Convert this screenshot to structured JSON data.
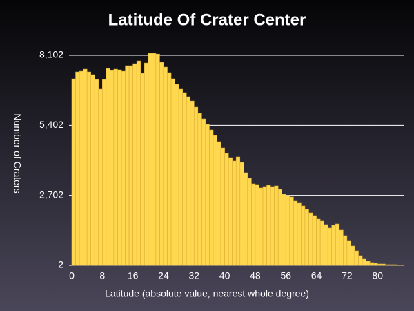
{
  "chart_data": {
    "type": "histogram",
    "title": "Latitude Of Crater Center",
    "xlabel": "Latitude (absolute value, nearest whole degree)",
    "ylabel": "Number of Craters",
    "bins": [
      0,
      1,
      2,
      3,
      4,
      5,
      6,
      7,
      8,
      9,
      10,
      11,
      12,
      13,
      14,
      15,
      16,
      17,
      18,
      19,
      20,
      21,
      22,
      23,
      24,
      25,
      26,
      27,
      28,
      29,
      30,
      31,
      32,
      33,
      34,
      35,
      36,
      37,
      38,
      39,
      40,
      41,
      42,
      43,
      44,
      45,
      46,
      47,
      48,
      49,
      50,
      51,
      52,
      53,
      54,
      55,
      56,
      57,
      58,
      59,
      60,
      61,
      62,
      63,
      64,
      65,
      66,
      67,
      68,
      69,
      70,
      71,
      72,
      73,
      74,
      75,
      76,
      77,
      78,
      79,
      80,
      81,
      82,
      83,
      84,
      85,
      86,
      87
    ],
    "values": [
      7193,
      7461,
      7487,
      7567,
      7461,
      7354,
      7168,
      6795,
      7168,
      7594,
      7514,
      7567,
      7540,
      7487,
      7700,
      7700,
      7780,
      7887,
      7407,
      7807,
      8180,
      8180,
      8150,
      7833,
      7647,
      7434,
      7195,
      6982,
      6795,
      6662,
      6502,
      6342,
      6102,
      5863,
      5650,
      5437,
      5224,
      5010,
      4770,
      4531,
      4318,
      4158,
      4025,
      4185,
      3971,
      3572,
      3359,
      3146,
      3119,
      2986,
      3039,
      3092,
      3039,
      3066,
      2932,
      2746,
      2693,
      2640,
      2480,
      2400,
      2293,
      2160,
      2027,
      1920,
      1787,
      1707,
      1574,
      1441,
      1547,
      1600,
      1361,
      1148,
      961,
      748,
      561,
      375,
      242,
      162,
      109,
      82,
      55,
      55,
      29,
      29,
      29,
      10,
      5
    ],
    "color": "#ffd84f",
    "xlim": [
      0,
      87
    ],
    "xticks": [
      0,
      8,
      16,
      24,
      32,
      40,
      48,
      56,
      64,
      72,
      80
    ],
    "ylim": [
      2,
      8102
    ],
    "yticks": [
      2,
      {
        "value": 2702,
        "label": "2,702"
      },
      {
        "value": 5402,
        "label": "5,402"
      },
      {
        "value": 8102,
        "label": "8,102"
      }
    ],
    "grid": true
  }
}
